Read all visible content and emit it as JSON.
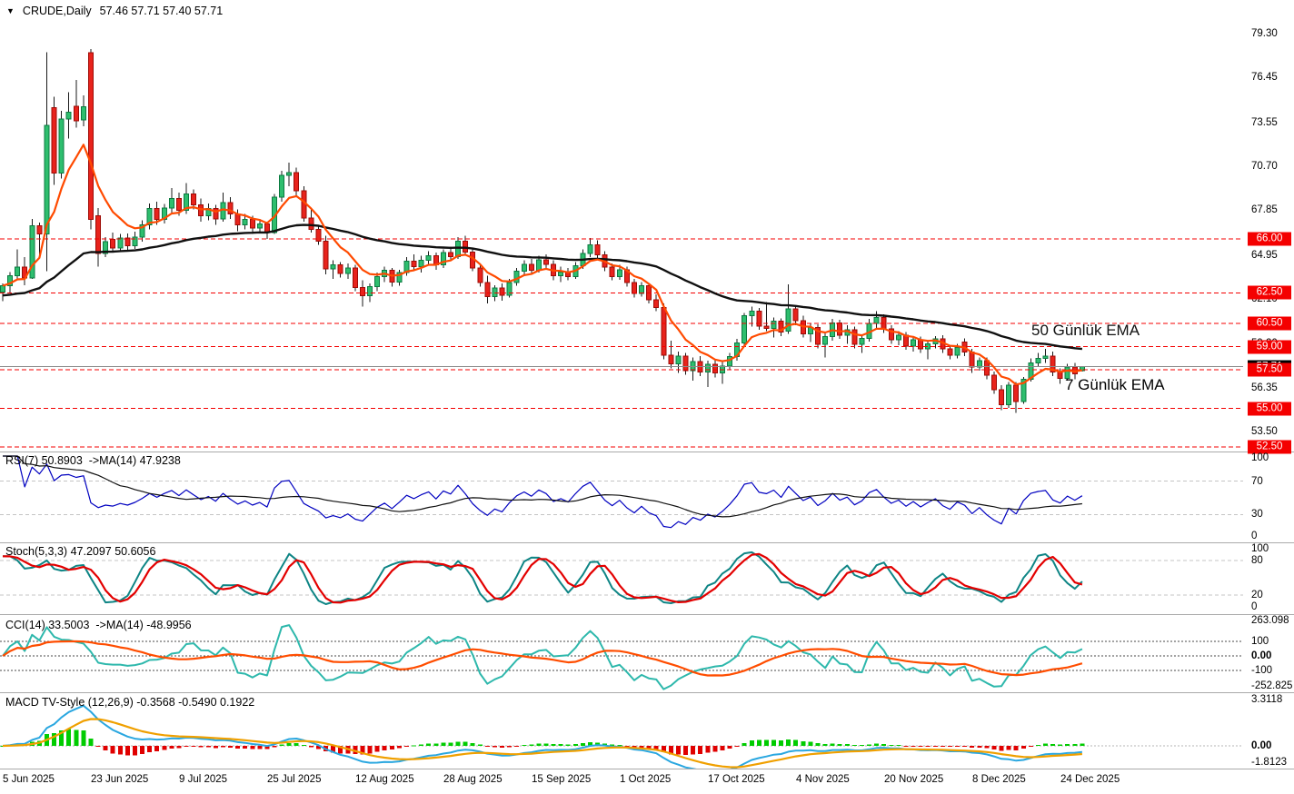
{
  "title": {
    "dropdown_icon": "▼",
    "symbol_period": "CRUDE,Daily",
    "ohlc": "57.46 57.71 57.40 57.71"
  },
  "annotations": {
    "ema50_label": "50 Günlük EMA",
    "ema7_label": "7 Günlük EMA"
  },
  "colors": {
    "background": "#ffffff",
    "up_fill": "#2ebe6e",
    "up_stroke": "#0b7a40",
    "down_fill": "#e8231c",
    "down_stroke": "#9e0b06",
    "wick": "#1a1a1a",
    "ema7": "#ff4a00",
    "ema50": "#101010",
    "level_red": "#f40000",
    "badge_red": "#f40000",
    "badge_black": "#000000",
    "current_line": "#8a8a8a",
    "rsi_line": "#0000c0",
    "rsi_ma": "#101010",
    "stoch_main": "#0e8585",
    "stoch_signal": "#e30000",
    "cci_line": "#2eb8ac",
    "cci_ma": "#ff4d00",
    "macd_line": "#2aa7e0",
    "macd_signal": "#f0a000",
    "hist_up": "#00cc00",
    "hist_down": "#e00000",
    "panel_level_grey": "#c4c4c4",
    "cci_level": "#484848",
    "macd_zero": "#b4b4b4",
    "ema7_label_color": "#ff9c00"
  },
  "price_axis": {
    "grid_labels": [
      "79.30",
      "76.45",
      "73.55",
      "70.70",
      "67.85",
      "64.95",
      "62.10",
      "59.20",
      "56.35",
      "53.50"
    ],
    "badges": [
      "66.00",
      "62.50",
      "60.50",
      "59.00",
      "57.50",
      "55.00",
      "52.50"
    ],
    "current": "57.71"
  },
  "time_axis": {
    "labels": [
      "5 Jun 2025",
      "23 Jun 2025",
      "9 Jul 2025",
      "25 Jul 2025",
      "12 Aug 2025",
      "28 Aug 2025",
      "15 Sep 2025",
      "1 Oct 2025",
      "17 Oct 2025",
      "4 Nov 2025",
      "20 Nov 2025",
      "8 Dec 2025",
      "24 Dec 2025"
    ],
    "bars_per_tick": 12
  },
  "panels": {
    "rsi": {
      "label": "RSI(7) 50.8903  ->MA(14) 47.9238",
      "axis": [
        {
          "text": "100",
          "value": 100
        },
        {
          "text": "70",
          "value": 70
        },
        {
          "text": "30",
          "value": 30
        },
        {
          "text": "0",
          "value": 0
        }
      ],
      "levels": [
        70,
        30
      ]
    },
    "stoch": {
      "label": "Stoch(5,3,3) 47.2097 50.6056",
      "axis": [
        {
          "text": "100",
          "value": 100
        },
        {
          "text": "80",
          "value": 80
        },
        {
          "text": "20",
          "value": 20
        },
        {
          "text": "0",
          "value": 0
        }
      ],
      "levels": [
        80,
        20
      ]
    },
    "cci": {
      "label": "CCI(14) 33.5003  ->MA(14) -48.9956",
      "axis": [
        {
          "text": "263.098",
          "value": 263.098
        },
        {
          "text": "100",
          "value": 100
        },
        {
          "text": "0.00",
          "value": 0,
          "bold": true
        },
        {
          "text": "-100",
          "value": -100
        },
        {
          "text": "-252.825",
          "value": -252.825
        }
      ],
      "levels": [
        100,
        0,
        -100
      ]
    },
    "macd": {
      "label": "MACD TV-Style (12,26,9) -0.3568 -0.5490 0.1922",
      "axis": [
        {
          "text": "3.3118",
          "value": 3.3118
        },
        {
          "text": "0.00",
          "value": 0,
          "bold": true
        },
        {
          "text": "-1.8123",
          "value": -1.8123
        }
      ],
      "levels": [
        0
      ]
    }
  },
  "chart_data": {
    "type": "candlestick",
    "symbol": "CRUDE",
    "period": "Daily",
    "last_ohlc": {
      "open": 57.46,
      "high": 57.71,
      "low": 57.4,
      "close": 57.71
    },
    "y_axis": {
      "max_label": 79.3,
      "min_label": 52.5,
      "grid_step": 2.85
    },
    "x_tick_labels": [
      "5 Jun 2025",
      "23 Jun 2025",
      "9 Jul 2025",
      "25 Jul 2025",
      "12 Aug 2025",
      "28 Aug 2025",
      "15 Sep 2025",
      "1 Oct 2025",
      "17 Oct 2025",
      "4 Nov 2025",
      "20 Nov 2025",
      "8 Dec 2025",
      "24 Dec 2025"
    ],
    "horizontal_levels": [
      66.0,
      62.5,
      60.5,
      59.0,
      57.5,
      55.0,
      52.5
    ],
    "current_price": 57.71,
    "overlays": [
      {
        "name": "7 Günlük EMA",
        "type": "ema",
        "period": 7
      },
      {
        "name": "50 Günlük EMA",
        "type": "ema",
        "period": 50,
        "seed": 62.3
      }
    ],
    "indicators": [
      {
        "name": "RSI",
        "params": [
          7
        ],
        "ma_period": 14,
        "readout": [
          50.8903,
          47.9238
        ],
        "levels": [
          70,
          30
        ]
      },
      {
        "name": "Stochastic",
        "params": [
          5,
          3,
          3
        ],
        "readout": [
          47.2097,
          50.6056
        ],
        "levels": [
          80,
          20
        ]
      },
      {
        "name": "CCI",
        "params": [
          14
        ],
        "ma_period": 14,
        "readout": [
          33.5003,
          -48.9956
        ],
        "levels": [
          100,
          0,
          -100
        ],
        "range": [
          263.098,
          -252.825
        ]
      },
      {
        "name": "MACD TV-Style",
        "params": [
          12,
          26,
          9
        ],
        "readout": [
          -0.3568,
          -0.549,
          0.1922
        ],
        "range": [
          3.3118,
          -1.8123
        ]
      }
    ],
    "candles": [
      [
        62.55,
        63.1,
        61.95,
        62.95
      ],
      [
        62.95,
        63.85,
        62.5,
        63.6
      ],
      [
        63.6,
        65.3,
        63.3,
        64.15
      ],
      [
        64.15,
        64.8,
        63.0,
        63.45
      ],
      [
        63.45,
        67.3,
        63.4,
        66.85
      ],
      [
        66.85,
        67.05,
        64.9,
        66.3
      ],
      [
        66.3,
        78.1,
        63.9,
        73.35
      ],
      [
        74.5,
        75.2,
        69.5,
        70.25
      ],
      [
        70.25,
        74.3,
        69.9,
        73.75
      ],
      [
        73.75,
        75.5,
        72.5,
        74.2
      ],
      [
        74.6,
        76.3,
        73.2,
        73.65
      ],
      [
        73.7,
        75.3,
        73.3,
        74.55
      ],
      [
        78.05,
        78.3,
        66.6,
        67.25
      ],
      [
        67.5,
        68.0,
        64.2,
        65.05
      ],
      [
        65.05,
        66.1,
        64.8,
        65.8
      ],
      [
        65.95,
        66.4,
        65.1,
        65.4
      ],
      [
        65.4,
        66.3,
        65.2,
        66.05
      ],
      [
        66.05,
        66.35,
        65.25,
        65.55
      ],
      [
        65.55,
        66.45,
        65.35,
        66.1
      ],
      [
        66.1,
        67.2,
        65.8,
        66.9
      ],
      [
        66.9,
        68.3,
        66.6,
        67.95
      ],
      [
        67.95,
        68.4,
        66.9,
        67.25
      ],
      [
        67.25,
        68.25,
        67.0,
        68.0
      ],
      [
        68.0,
        69.3,
        67.7,
        68.6
      ],
      [
        68.6,
        69.0,
        67.5,
        67.85
      ],
      [
        67.85,
        69.6,
        67.6,
        68.9
      ],
      [
        68.9,
        69.2,
        67.9,
        68.2
      ],
      [
        68.2,
        68.6,
        67.1,
        67.5
      ],
      [
        67.5,
        68.3,
        67.2,
        67.95
      ],
      [
        67.95,
        68.2,
        66.9,
        67.3
      ],
      [
        67.3,
        69.0,
        67.1,
        68.35
      ],
      [
        68.35,
        68.7,
        67.3,
        67.6
      ],
      [
        67.6,
        67.9,
        66.5,
        66.9
      ],
      [
        66.9,
        67.6,
        66.6,
        67.25
      ],
      [
        67.25,
        67.5,
        66.3,
        66.7
      ],
      [
        66.7,
        67.3,
        66.4,
        66.95
      ],
      [
        66.95,
        67.1,
        66.0,
        66.4
      ],
      [
        66.4,
        68.9,
        66.3,
        68.7
      ],
      [
        68.7,
        70.4,
        68.4,
        70.1
      ],
      [
        70.1,
        70.95,
        69.4,
        70.3
      ],
      [
        70.3,
        70.6,
        68.8,
        69.1
      ],
      [
        69.1,
        69.4,
        67.1,
        67.35
      ],
      [
        67.35,
        67.9,
        66.4,
        66.6
      ],
      [
        66.6,
        66.9,
        65.6,
        65.85
      ],
      [
        65.85,
        66.2,
        63.7,
        64.05
      ],
      [
        64.05,
        64.6,
        63.4,
        64.3
      ],
      [
        64.3,
        64.5,
        63.5,
        63.75
      ],
      [
        63.75,
        64.4,
        63.4,
        64.1
      ],
      [
        64.1,
        64.3,
        62.6,
        62.85
      ],
      [
        62.85,
        63.3,
        61.6,
        62.3
      ],
      [
        62.3,
        63.1,
        61.9,
        62.9
      ],
      [
        62.9,
        63.8,
        62.6,
        63.55
      ],
      [
        63.55,
        64.2,
        63.2,
        63.95
      ],
      [
        63.95,
        64.1,
        62.9,
        63.2
      ],
      [
        63.2,
        64.0,
        62.95,
        63.8
      ],
      [
        63.8,
        64.8,
        63.6,
        64.55
      ],
      [
        64.55,
        65.0,
        63.9,
        64.2
      ],
      [
        64.2,
        64.9,
        63.8,
        64.6
      ],
      [
        64.6,
        65.2,
        64.3,
        64.9
      ],
      [
        64.9,
        65.1,
        64.0,
        64.3
      ],
      [
        64.3,
        65.3,
        64.1,
        65.1
      ],
      [
        65.1,
        65.5,
        64.6,
        64.85
      ],
      [
        64.85,
        66.1,
        64.7,
        65.85
      ],
      [
        65.85,
        66.2,
        64.9,
        65.15
      ],
      [
        65.15,
        65.4,
        63.9,
        64.1
      ],
      [
        64.1,
        64.4,
        62.9,
        63.15
      ],
      [
        63.15,
        63.6,
        61.8,
        62.25
      ],
      [
        62.25,
        63.0,
        61.95,
        62.8
      ],
      [
        62.8,
        63.1,
        62.0,
        62.35
      ],
      [
        62.35,
        63.4,
        62.2,
        63.15
      ],
      [
        63.15,
        64.1,
        62.95,
        63.9
      ],
      [
        63.9,
        64.6,
        63.6,
        64.35
      ],
      [
        64.35,
        64.7,
        63.7,
        63.95
      ],
      [
        63.95,
        64.9,
        63.8,
        64.65
      ],
      [
        64.65,
        65.0,
        64.1,
        64.35
      ],
      [
        64.35,
        64.6,
        63.3,
        63.6
      ],
      [
        63.6,
        64.2,
        63.2,
        63.85
      ],
      [
        63.85,
        64.1,
        63.3,
        63.55
      ],
      [
        63.55,
        64.5,
        63.4,
        64.25
      ],
      [
        64.25,
        65.3,
        64.05,
        65.05
      ],
      [
        65.05,
        66.05,
        64.8,
        65.6
      ],
      [
        65.6,
        65.9,
        64.7,
        64.95
      ],
      [
        64.95,
        65.2,
        63.9,
        64.15
      ],
      [
        64.15,
        64.4,
        63.3,
        63.55
      ],
      [
        63.55,
        64.3,
        63.35,
        64.0
      ],
      [
        64.0,
        64.2,
        62.9,
        63.15
      ],
      [
        63.15,
        63.4,
        62.2,
        62.45
      ],
      [
        62.45,
        63.2,
        62.25,
        62.95
      ],
      [
        62.95,
        63.1,
        61.8,
        62.05
      ],
      [
        62.05,
        62.4,
        61.3,
        61.55
      ],
      [
        61.55,
        61.8,
        58.2,
        58.45
      ],
      [
        58.45,
        59.4,
        57.6,
        57.9
      ],
      [
        57.9,
        58.7,
        57.3,
        58.4
      ],
      [
        58.4,
        58.6,
        57.2,
        57.45
      ],
      [
        57.45,
        58.3,
        56.8,
        58.05
      ],
      [
        58.05,
        58.4,
        57.1,
        57.35
      ],
      [
        57.35,
        58.1,
        56.4,
        57.85
      ],
      [
        57.85,
        58.2,
        57.0,
        57.3
      ],
      [
        57.3,
        58.0,
        56.6,
        57.75
      ],
      [
        57.75,
        58.6,
        57.5,
        58.35
      ],
      [
        58.35,
        59.5,
        58.1,
        59.25
      ],
      [
        59.25,
        61.2,
        59.05,
        61.0
      ],
      [
        61.0,
        61.6,
        60.3,
        61.3
      ],
      [
        61.3,
        61.5,
        60.1,
        60.35
      ],
      [
        60.35,
        61.9,
        60.0,
        60.2
      ],
      [
        60.2,
        60.9,
        59.6,
        60.65
      ],
      [
        60.65,
        60.85,
        59.7,
        59.95
      ],
      [
        60.0,
        63.05,
        59.85,
        61.45
      ],
      [
        61.45,
        61.7,
        60.4,
        60.7
      ],
      [
        60.7,
        61.0,
        59.6,
        59.85
      ],
      [
        59.85,
        60.5,
        59.3,
        60.25
      ],
      [
        60.25,
        60.45,
        58.9,
        59.15
      ],
      [
        59.15,
        59.9,
        58.3,
        59.65
      ],
      [
        59.65,
        60.8,
        59.4,
        60.55
      ],
      [
        60.55,
        60.75,
        59.5,
        59.75
      ],
      [
        59.75,
        60.4,
        59.2,
        60.1
      ],
      [
        60.1,
        60.3,
        58.9,
        59.15
      ],
      [
        59.15,
        59.8,
        58.6,
        59.55
      ],
      [
        59.55,
        60.8,
        59.35,
        60.5
      ],
      [
        60.5,
        61.3,
        60.1,
        60.9
      ],
      [
        60.9,
        61.1,
        59.9,
        60.15
      ],
      [
        60.15,
        60.4,
        59.2,
        59.45
      ],
      [
        59.45,
        60.0,
        59.1,
        59.75
      ],
      [
        59.75,
        59.95,
        58.8,
        59.05
      ],
      [
        59.05,
        59.7,
        58.7,
        59.45
      ],
      [
        59.45,
        59.65,
        58.6,
        58.85
      ],
      [
        58.85,
        59.4,
        58.2,
        59.2
      ],
      [
        59.2,
        59.7,
        58.9,
        59.5
      ],
      [
        59.5,
        59.75,
        58.6,
        58.85
      ],
      [
        58.85,
        59.1,
        58.2,
        58.45
      ],
      [
        58.45,
        59.2,
        58.25,
        58.95
      ],
      [
        59.3,
        59.55,
        58.4,
        58.65
      ],
      [
        58.65,
        58.85,
        57.3,
        57.7
      ],
      [
        57.7,
        58.3,
        57.45,
        58.1
      ],
      [
        58.1,
        58.3,
        56.9,
        57.15
      ],
      [
        57.15,
        57.4,
        55.95,
        56.2
      ],
      [
        56.2,
        56.5,
        54.9,
        55.25
      ],
      [
        55.25,
        56.7,
        55.05,
        56.5
      ],
      [
        56.5,
        56.7,
        54.7,
        55.45
      ],
      [
        55.45,
        57.05,
        55.3,
        56.9
      ],
      [
        56.9,
        58.25,
        56.75,
        57.95
      ],
      [
        57.95,
        58.6,
        57.7,
        58.25
      ],
      [
        58.25,
        58.85,
        57.95,
        58.4
      ],
      [
        58.4,
        58.7,
        57.1,
        57.35
      ],
      [
        57.35,
        57.6,
        56.6,
        56.95
      ],
      [
        56.95,
        57.9,
        56.8,
        57.7
      ],
      [
        57.7,
        57.95,
        56.9,
        57.25
      ],
      [
        57.46,
        57.71,
        57.4,
        57.71
      ]
    ]
  }
}
